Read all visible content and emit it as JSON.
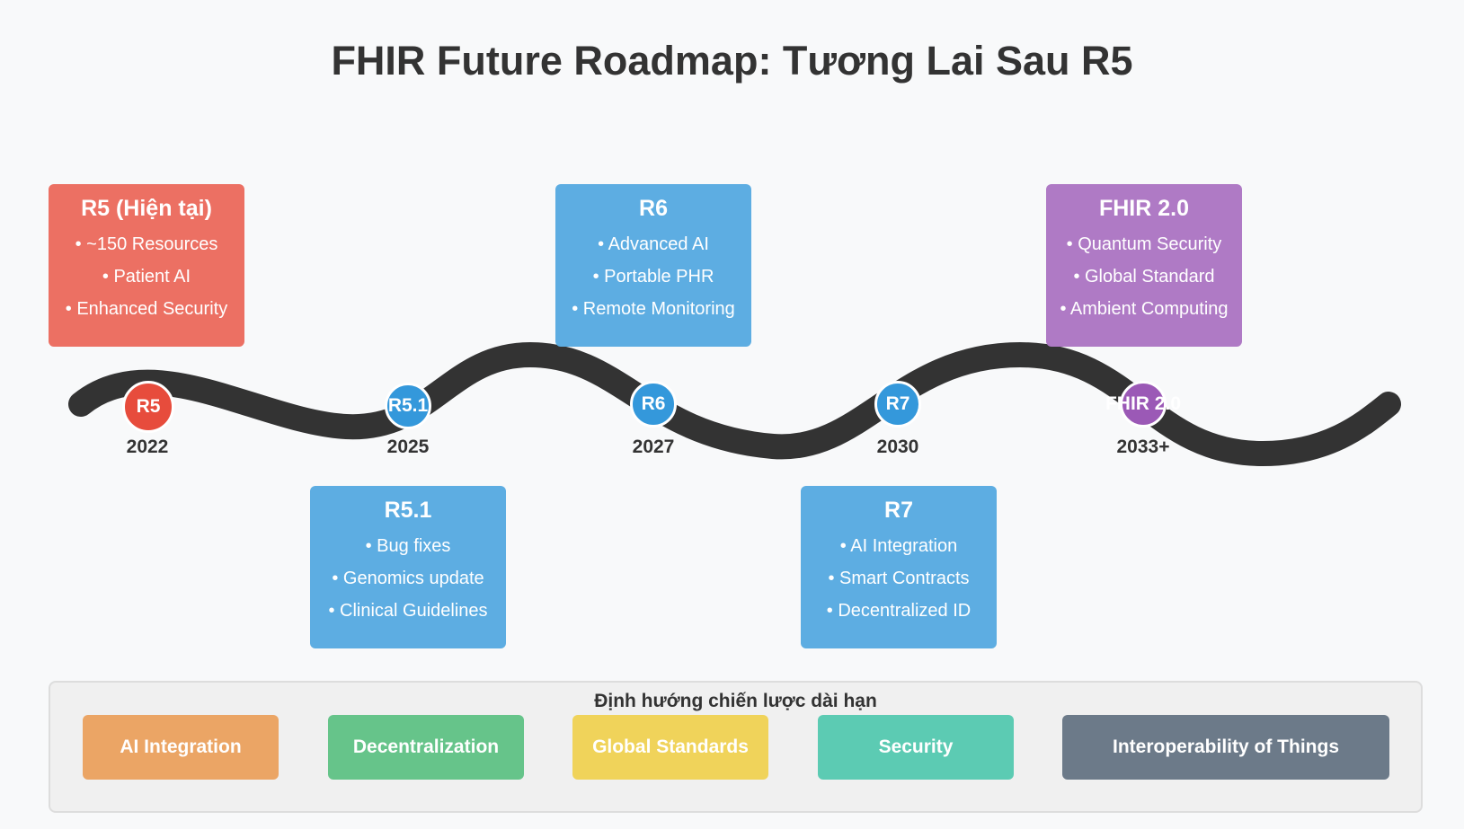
{
  "title": "FHIR Future Roadmap: Tương Lai Sau R5",
  "colors": {
    "background": "#f8f9fa",
    "road": "#333333",
    "current_red": "#e74c3c",
    "release_blue": "#3498db",
    "future_purple": "#9b59b6",
    "card_red": "#ec7063",
    "card_blue": "#5dade2",
    "card_purple": "#af7ac5"
  },
  "milestones": [
    {
      "node_label": "R5",
      "year": "2022",
      "card_title": "R5 (Hiện tại)",
      "items": [
        "• ~150 Resources",
        "• Patient AI",
        "• Enhanced Security"
      ]
    },
    {
      "node_label": "R5.1",
      "year": "2025",
      "card_title": "R5.1",
      "items": [
        "• Bug fixes",
        "• Genomics update",
        "• Clinical Guidelines"
      ]
    },
    {
      "node_label": "R6",
      "year": "2027",
      "card_title": "R6",
      "items": [
        "• Advanced AI",
        "• Portable PHR",
        "• Remote Monitoring"
      ]
    },
    {
      "node_label": "R7",
      "year": "2030",
      "card_title": "R7",
      "items": [
        "• AI Integration",
        "• Smart Contracts",
        "• Decentralized ID"
      ]
    },
    {
      "node_label": "FHIR 2.0",
      "year": "2033+",
      "card_title": "FHIR 2.0",
      "items": [
        "• Quantum Security",
        "• Global Standard",
        "• Ambient Computing"
      ]
    }
  ],
  "strategy": {
    "title": "Định hướng chiến lược dài hạn",
    "pills": [
      {
        "label": "AI Integration",
        "color": "#eba565"
      },
      {
        "label": "Decentralization",
        "color": "#66c48a"
      },
      {
        "label": "Global Standards",
        "color": "#f0d35a"
      },
      {
        "label": "Security",
        "color": "#5ccbb3"
      },
      {
        "label": "Interoperability of Things",
        "color": "#6c7a89"
      }
    ]
  }
}
